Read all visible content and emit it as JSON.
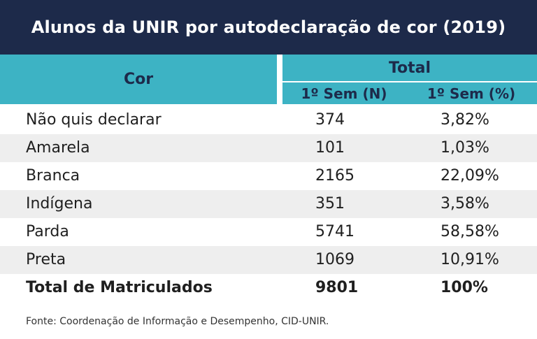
{
  "title": "Alunos da UNIR por autodeclaração de cor (2019)",
  "header": {
    "col_cor": "Cor",
    "col_total": "Total",
    "sub_n": "1º Sem (N)",
    "sub_pct": "1º Sem (%)"
  },
  "rows": [
    {
      "cor": "Não quis declarar",
      "n": "374",
      "pct": "3,82%"
    },
    {
      "cor": "Amarela",
      "n": "101",
      "pct": "1,03%"
    },
    {
      "cor": "Branca",
      "n": "2165",
      "pct": "22,09%"
    },
    {
      "cor": "Indígena",
      "n": "351",
      "pct": "3,58%"
    },
    {
      "cor": "Parda",
      "n": "5741",
      "pct": "58,58%"
    },
    {
      "cor": "Preta",
      "n": "1069",
      "pct": "10,91%"
    }
  ],
  "total_row": {
    "cor": "Total de Matriculados",
    "n": "9801",
    "pct": "100%"
  },
  "source": "Fonte: Coordenação de Informação e Desempenho, CID-UNIR.",
  "colors": {
    "title_bg": "#1d2a4a",
    "header_bg": "#3db3c4",
    "alt_row_bg": "#eeeeee"
  }
}
